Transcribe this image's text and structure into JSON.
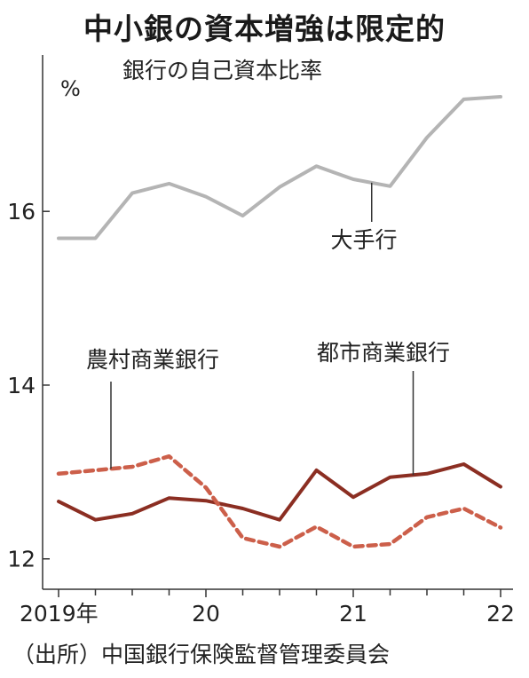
{
  "title": "中小銀の資本増強は限定的",
  "subtitle": "銀行の自己資本比率",
  "unit": "%",
  "source": "（出所）中国銀行保険監督管理委員会",
  "colors": {
    "large_banks": "#b4b4b4",
    "city_commercial": "#8b2e22",
    "rural_commercial": "#cc5f4a",
    "axis": "#333333",
    "text": "#222222"
  },
  "chart_data": {
    "type": "line",
    "title": "中小銀の資本増強は限定的",
    "subtitle": "銀行の自己資本比率",
    "ylabel": "%",
    "ylim": [
      11.65,
      17.8
    ],
    "yticks": [
      12,
      14,
      16
    ],
    "x": [
      "2019Q1",
      "2019Q2",
      "2019Q3",
      "2019Q4",
      "2020Q1",
      "2020Q2",
      "2020Q3",
      "2020Q4",
      "2021Q1",
      "2021Q2",
      "2021Q3",
      "2021Q4",
      "2022Q1"
    ],
    "xtick_labels": [
      {
        "label": "2019年",
        "at": "2019Q1"
      },
      {
        "label": "20",
        "at": "2020Q1"
      },
      {
        "label": "21",
        "at": "2021Q1"
      },
      {
        "label": "22",
        "at": "2022Q1"
      }
    ],
    "grid": false,
    "series": [
      {
        "name": "大手行",
        "style": "solid",
        "values": [
          15.69,
          15.69,
          16.21,
          16.32,
          16.17,
          15.95,
          16.28,
          16.52,
          16.37,
          16.29,
          16.85,
          17.29,
          17.32
        ]
      },
      {
        "name": "都市商業銀行",
        "style": "solid",
        "values": [
          12.66,
          12.45,
          12.52,
          12.7,
          12.67,
          12.58,
          12.45,
          13.02,
          12.71,
          12.94,
          12.98,
          13.09,
          12.83
        ]
      },
      {
        "name": "農村商業銀行",
        "style": "dashed",
        "values": [
          12.98,
          13.02,
          13.06,
          13.18,
          12.82,
          12.24,
          12.14,
          12.37,
          12.14,
          12.17,
          12.48,
          12.58,
          12.36
        ]
      }
    ],
    "annotations": [
      {
        "series": "大手行",
        "text": "大手行",
        "at": "2021Q2"
      },
      {
        "series": "都市商業銀行",
        "text": "都市商業銀行",
        "at": "2021Q2"
      },
      {
        "series": "農村商業銀行",
        "text": "農村商業銀行",
        "at": "2019Q3"
      }
    ]
  }
}
